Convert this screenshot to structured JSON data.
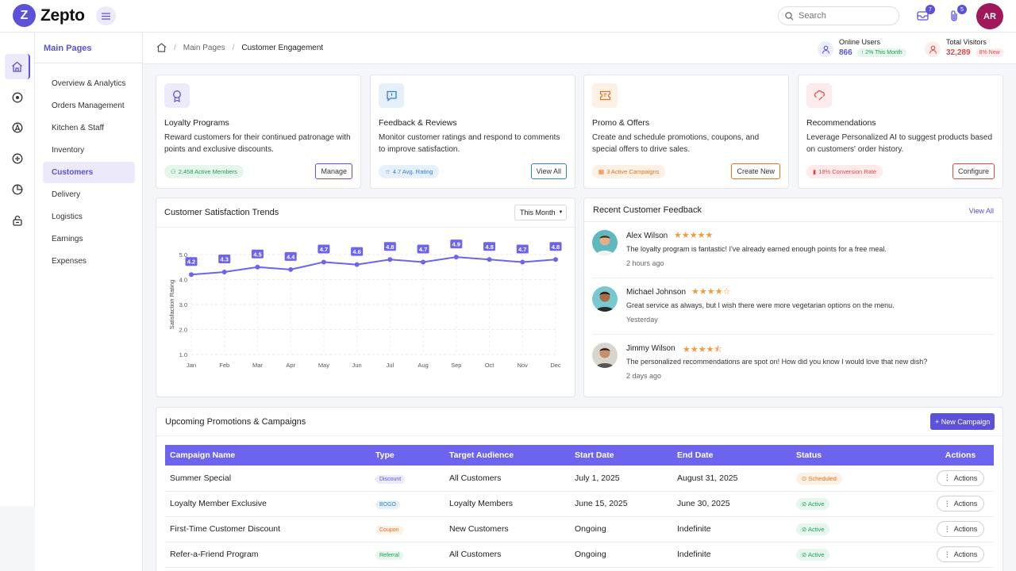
{
  "app": {
    "logo_letter": "Z",
    "name": "Zepto",
    "avatar_initials": "AR"
  },
  "topbar": {
    "search_placeholder": "Search",
    "messages_count": "7",
    "notifications_count": "5"
  },
  "subnav": {
    "title": "Main Pages",
    "items": [
      "Overview & Analytics",
      "Orders Management",
      "Kitchen & Staff",
      "Inventory",
      "Customers",
      "Delivery",
      "Logistics",
      "Earnings",
      "Expenses"
    ]
  },
  "breadcrumb": {
    "parent": "Main Pages",
    "current": "Customer Engagement"
  },
  "stats": {
    "online": {
      "label": "Online Users",
      "value": "866",
      "change": "↑ 2% This Month"
    },
    "visitors": {
      "label": "Total Visitors",
      "value": "32,289",
      "change": "8% New"
    }
  },
  "feature_cards": [
    {
      "title": "Loyalty Programs",
      "desc": "Reward customers for their continued patronage with points and exclusive discounts.",
      "badge": "2,458 Active Members",
      "button": "Manage",
      "icon": "award-icon"
    },
    {
      "title": "Feedback & Reviews",
      "desc": "Monitor customer ratings and respond to comments to improve satisfaction.",
      "badge": "4.7 Avg. Rating",
      "button": "View All",
      "icon": "message-alert-icon"
    },
    {
      "title": "Promo & Offers",
      "desc": "Create and schedule promotions, coupons, and special offers to drive sales.",
      "badge": "3 Active Campaigns",
      "button": "Create New",
      "icon": "ticket-icon"
    },
    {
      "title": "Recommendations",
      "desc": "Leverage Personalized AI to suggest products based on customers' order history.",
      "badge": "18% Conversion Rate",
      "button": "Configure",
      "icon": "chef-hat-icon"
    }
  ],
  "chart": {
    "title": "Customer Satisfaction Trends",
    "range": "This Month"
  },
  "chart_data": {
    "type": "line",
    "title": "Customer Satisfaction Trends",
    "ylabel": "Satisfaction Rating",
    "xlabel": "",
    "categories": [
      "Jan",
      "Feb",
      "Mar",
      "Apr",
      "May",
      "Jun",
      "Jul",
      "Aug",
      "Sep",
      "Oct",
      "Nov",
      "Dec"
    ],
    "values": [
      4.2,
      4.3,
      4.5,
      4.4,
      4.7,
      4.6,
      4.8,
      4.7,
      4.9,
      4.8,
      4.7,
      4.8
    ],
    "ylim": [
      1.0,
      5.0
    ],
    "yticks": [
      "5.0",
      "4.0",
      "3.0",
      "2.0",
      "1.0"
    ],
    "grid": true,
    "color": "#6c63ee"
  },
  "feedback": {
    "title": "Recent Customer Feedback",
    "view_all": "View All",
    "items": [
      {
        "name": "Alex Wilson",
        "stars": "★★★★★",
        "text": "The loyalty program is fantastic! I've already earned enough points for a free meal.",
        "time": "2 hours ago"
      },
      {
        "name": "Michael Johnson",
        "stars": "★★★★☆",
        "text": "Great service as always, but I wish there were more vegetarian options on the menu.",
        "time": "Yesterday"
      },
      {
        "name": "Jimmy Wilson",
        "stars": "★★★★⯪",
        "text": "The personalized recommendations are spot on! How did you know I would love that new dish?",
        "time": "2 days ago"
      }
    ]
  },
  "campaigns": {
    "title": "Upcoming Promotions & Campaigns",
    "new_button": "+ New Campaign",
    "columns": [
      "Campaign Name",
      "Type",
      "Target Audience",
      "Start Date",
      "End Date",
      "Status",
      "Actions"
    ],
    "rows": [
      {
        "name": "Summer Special",
        "type": "Discount",
        "audience": "All Customers",
        "start": "July 1, 2025",
        "end": "August 31, 2025",
        "status": "Scheduled",
        "action": "Actions"
      },
      {
        "name": "Loyalty Member Exclusive",
        "type": "BOGO",
        "audience": "Loyalty Members",
        "start": "June 15, 2025",
        "end": "June 30, 2025",
        "status": "Active",
        "action": "Actions"
      },
      {
        "name": "First-Time Customer Discount",
        "type": "Coupon",
        "audience": "New Customers",
        "start": "Ongoing",
        "end": "Indefinite",
        "status": "Active",
        "action": "Actions"
      },
      {
        "name": "Refer-a-Friend Program",
        "type": "Referral",
        "audience": "All Customers",
        "start": "Ongoing",
        "end": "Indefinite",
        "status": "Active",
        "action": "Actions"
      }
    ]
  },
  "colors": {
    "accent": "#5b52d9",
    "chart": "#6c63ee",
    "star": "#f29a3a",
    "active": "#1f9e52",
    "scheduled": "#e0731f"
  }
}
